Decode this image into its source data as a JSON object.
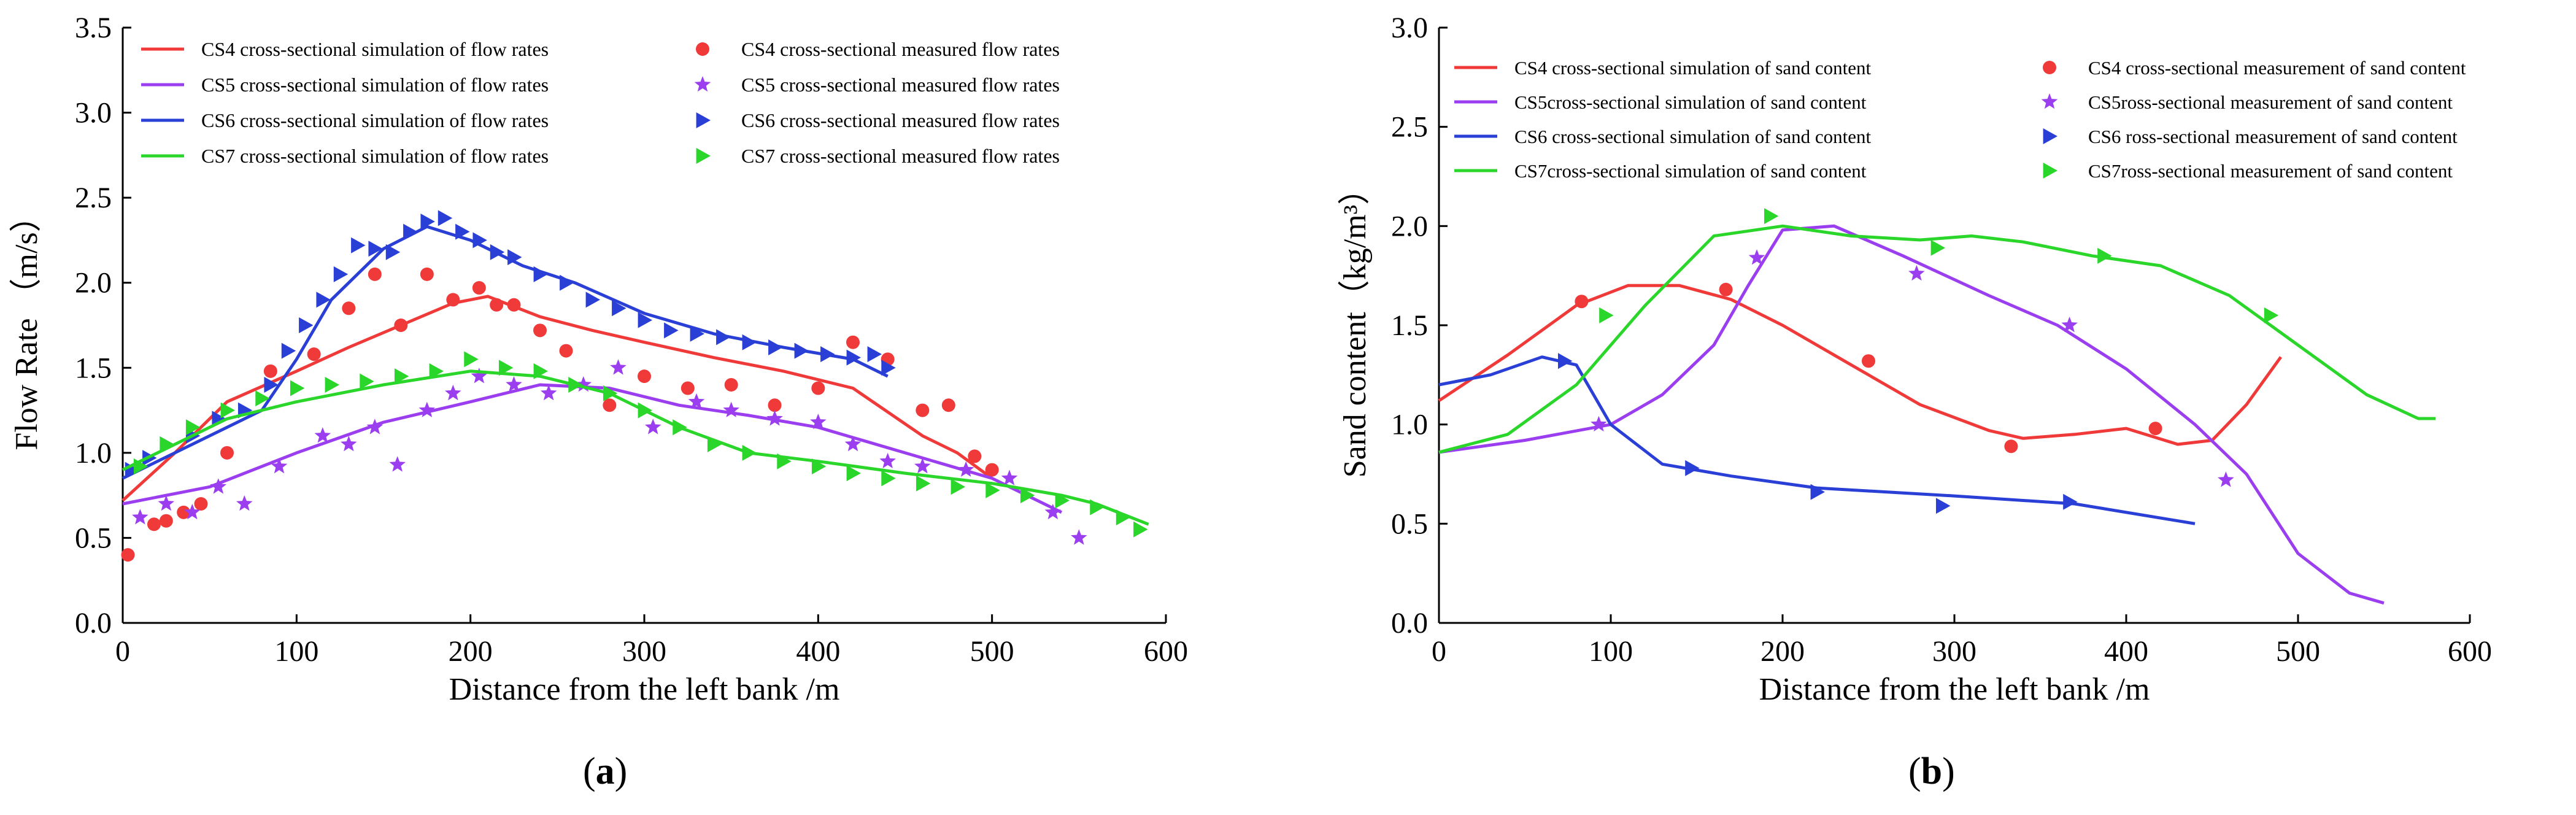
{
  "chart_data": [
    {
      "panel": "a",
      "panel_label": "a",
      "type": "line",
      "xlabel": "Distance from the left bank /m",
      "ylabel": "Flow Rate （m/s）",
      "xlim": [
        0,
        600
      ],
      "ylim": [
        0.0,
        3.5
      ],
      "xticks": [
        "0",
        "100",
        "200",
        "300",
        "400",
        "500",
        "600"
      ],
      "yticks": [
        "0.0",
        "0.5",
        "1.0",
        "1.5",
        "2.0",
        "2.5",
        "3.0",
        "3.5"
      ],
      "series": [
        {
          "name": "CS4 cross-sectional simulation of flow rates",
          "kind": "line",
          "color": "#f03a3a",
          "x": [
            0,
            30,
            60,
            100,
            130,
            160,
            190,
            210,
            240,
            270,
            300,
            340,
            380,
            420,
            460,
            480,
            500
          ],
          "y": [
            0.72,
            1.0,
            1.3,
            1.48,
            1.62,
            1.75,
            1.88,
            1.92,
            1.8,
            1.72,
            1.65,
            1.56,
            1.48,
            1.38,
            1.1,
            1.0,
            0.85
          ]
        },
        {
          "name": "CS4 cross-sectional measured flow rates",
          "kind": "marker",
          "marker": "circle",
          "color": "#f03a3a",
          "x": [
            3,
            18,
            25,
            35,
            45,
            60,
            85,
            110,
            130,
            145,
            160,
            175,
            190,
            205,
            215,
            225,
            240,
            255,
            280,
            300,
            325,
            350,
            375,
            400,
            420,
            440,
            460,
            475,
            490,
            500
          ],
          "y": [
            0.4,
            0.58,
            0.6,
            0.65,
            0.7,
            1.0,
            1.48,
            1.58,
            1.85,
            2.05,
            1.75,
            2.05,
            1.9,
            1.97,
            1.87,
            1.87,
            1.72,
            1.6,
            1.28,
            1.45,
            1.38,
            1.4,
            1.28,
            1.38,
            1.65,
            1.55,
            1.25,
            1.28,
            0.98,
            0.9
          ]
        },
        {
          "name": "CS5 cross-sectional simulation of flow rates",
          "kind": "line",
          "color": "#9b3ef0",
          "x": [
            0,
            50,
            100,
            150,
            200,
            240,
            280,
            320,
            360,
            400,
            450,
            500,
            540
          ],
          "y": [
            0.7,
            0.8,
            1.0,
            1.18,
            1.3,
            1.4,
            1.38,
            1.28,
            1.22,
            1.15,
            1.0,
            0.85,
            0.65
          ]
        },
        {
          "name": "CS5 cross-sectional measured flow rates",
          "kind": "marker",
          "marker": "star",
          "color": "#9b3ef0",
          "x": [
            10,
            25,
            40,
            55,
            70,
            90,
            115,
            130,
            145,
            158,
            175,
            190,
            205,
            225,
            245,
            265,
            285,
            305,
            330,
            350,
            375,
            400,
            420,
            440,
            460,
            485,
            510,
            535,
            550
          ],
          "y": [
            0.62,
            0.7,
            0.65,
            0.8,
            0.7,
            0.92,
            1.1,
            1.05,
            1.15,
            0.93,
            1.25,
            1.35,
            1.45,
            1.4,
            1.35,
            1.4,
            1.5,
            1.15,
            1.3,
            1.25,
            1.2,
            1.18,
            1.05,
            0.95,
            0.92,
            0.9,
            0.85,
            0.65,
            0.5
          ]
        },
        {
          "name": "CS6 cross-sectional simulation of flow rates",
          "kind": "line",
          "color": "#2a3fd6",
          "x": [
            0,
            50,
            80,
            100,
            120,
            150,
            175,
            200,
            230,
            260,
            300,
            340,
            380,
            420,
            440
          ],
          "y": [
            0.85,
            1.1,
            1.25,
            1.55,
            1.9,
            2.2,
            2.33,
            2.25,
            2.1,
            2.0,
            1.82,
            1.7,
            1.62,
            1.55,
            1.45
          ]
        },
        {
          "name": "CS6 cross-sectional measured flow rates",
          "kind": "marker",
          "marker": "triangle",
          "color": "#2a3fd6",
          "x": [
            5,
            15,
            25,
            40,
            55,
            70,
            85,
            95,
            105,
            115,
            125,
            135,
            145,
            155,
            165,
            175,
            185,
            195,
            205,
            215,
            225,
            240,
            255,
            270,
            285,
            300,
            315,
            330,
            345,
            360,
            375,
            390,
            405,
            420,
            432,
            440
          ],
          "y": [
            0.9,
            0.97,
            1.05,
            1.1,
            1.2,
            1.25,
            1.4,
            1.6,
            1.75,
            1.9,
            2.05,
            2.22,
            2.2,
            2.18,
            2.3,
            2.36,
            2.38,
            2.3,
            2.25,
            2.18,
            2.15,
            2.05,
            2.0,
            1.9,
            1.85,
            1.78,
            1.72,
            1.7,
            1.68,
            1.65,
            1.62,
            1.6,
            1.58,
            1.56,
            1.58,
            1.5
          ]
        },
        {
          "name": "CS7 cross-sectional simulation of flow rates",
          "kind": "line",
          "color": "#2bd62b",
          "x": [
            0,
            30,
            60,
            100,
            150,
            200,
            240,
            280,
            320,
            360,
            400,
            450,
            500,
            540,
            560,
            590
          ],
          "y": [
            0.9,
            1.05,
            1.2,
            1.3,
            1.4,
            1.48,
            1.45,
            1.35,
            1.15,
            1.0,
            0.95,
            0.88,
            0.82,
            0.75,
            0.7,
            0.58
          ]
        },
        {
          "name": "CS7 cross-sectional measured flow rates",
          "kind": "marker",
          "marker": "triangle",
          "color": "#2bd62b",
          "x": [
            10,
            25,
            40,
            60,
            80,
            100,
            120,
            140,
            160,
            180,
            200,
            220,
            240,
            260,
            280,
            300,
            320,
            340,
            360,
            380,
            400,
            420,
            440,
            460,
            480,
            500,
            520,
            540,
            560,
            575,
            585
          ],
          "y": [
            0.92,
            1.05,
            1.15,
            1.25,
            1.32,
            1.38,
            1.4,
            1.42,
            1.45,
            1.48,
            1.55,
            1.5,
            1.48,
            1.4,
            1.35,
            1.25,
            1.15,
            1.05,
            1.0,
            0.95,
            0.92,
            0.88,
            0.85,
            0.82,
            0.8,
            0.78,
            0.75,
            0.72,
            0.68,
            0.62,
            0.55
          ]
        }
      ]
    },
    {
      "panel": "b",
      "panel_label": "b",
      "type": "line",
      "xlabel": "Distance from the left bank /m",
      "ylabel": "Sand content（kg/m³）",
      "xlim": [
        0,
        600
      ],
      "ylim": [
        0.0,
        3.0
      ],
      "xticks": [
        "0",
        "100",
        "200",
        "300",
        "400",
        "500",
        "600"
      ],
      "yticks": [
        "0.0",
        "0.5",
        "1.0",
        "1.5",
        "2.0",
        "2.5",
        "3.0"
      ],
      "series": [
        {
          "name": "CS4 cross-sectional simulation of sand content",
          "kind": "line",
          "color": "#f03a3a",
          "x": [
            0,
            40,
            80,
            110,
            140,
            170,
            200,
            240,
            280,
            320,
            340,
            370,
            400,
            430,
            450,
            470,
            490
          ],
          "y": [
            1.12,
            1.35,
            1.6,
            1.7,
            1.7,
            1.63,
            1.5,
            1.3,
            1.1,
            0.97,
            0.93,
            0.95,
            0.98,
            0.9,
            0.92,
            1.1,
            1.34
          ]
        },
        {
          "name": "CS4 cross-sectional measurement of sand content",
          "kind": "marker",
          "marker": "circle",
          "color": "#f03a3a",
          "x": [
            83,
            167,
            250,
            333,
            417
          ],
          "y": [
            1.62,
            1.68,
            1.32,
            0.89,
            0.98
          ]
        },
        {
          "name": "CS5cross-sectional simulation of sand content",
          "kind": "line",
          "color": "#9b3ef0",
          "x": [
            0,
            50,
            100,
            130,
            160,
            180,
            200,
            230,
            270,
            320,
            360,
            400,
            440,
            470,
            500,
            530,
            550
          ],
          "y": [
            0.86,
            0.92,
            1.0,
            1.15,
            1.4,
            1.7,
            1.98,
            2.0,
            1.85,
            1.65,
            1.5,
            1.28,
            1.0,
            0.75,
            0.35,
            0.15,
            0.1
          ]
        },
        {
          "name": "CS5ross-sectional measurement of sand content",
          "kind": "marker",
          "marker": "star",
          "color": "#9b3ef0",
          "x": [
            93,
            185,
            278,
            367,
            458
          ],
          "y": [
            1.0,
            1.84,
            1.76,
            1.5,
            0.72
          ]
        },
        {
          "name": "CS6 cross-sectional simulation of sand content",
          "kind": "line",
          "color": "#2a3fd6",
          "x": [
            0,
            30,
            60,
            80,
            100,
            130,
            170,
            220,
            300,
            370,
            440
          ],
          "y": [
            1.2,
            1.25,
            1.34,
            1.3,
            1.0,
            0.8,
            0.74,
            0.68,
            0.64,
            0.6,
            0.5
          ]
        },
        {
          "name": "CS6 ross-sectional measurement of sand content",
          "kind": "marker",
          "marker": "triangle",
          "color": "#2a3fd6",
          "x": [
            73,
            147,
            220,
            293,
            367
          ],
          "y": [
            1.32,
            0.78,
            0.66,
            0.59,
            0.61
          ]
        },
        {
          "name": "CS7cross-sectional simulation of sand content",
          "kind": "line",
          "color": "#2bd62b",
          "x": [
            0,
            40,
            80,
            120,
            160,
            200,
            240,
            280,
            310,
            340,
            380,
            420,
            460,
            500,
            540,
            570,
            580
          ],
          "y": [
            0.86,
            0.95,
            1.2,
            1.6,
            1.95,
            2.0,
            1.95,
            1.93,
            1.95,
            1.92,
            1.85,
            1.8,
            1.65,
            1.4,
            1.15,
            1.03,
            1.03
          ]
        },
        {
          "name": "CS7ross-sectional measurement of sand content",
          "kind": "marker",
          "marker": "triangle",
          "color": "#2bd62b",
          "x": [
            97,
            193,
            290,
            387,
            484
          ],
          "y": [
            1.55,
            2.05,
            1.89,
            1.85,
            1.55
          ]
        }
      ]
    }
  ]
}
